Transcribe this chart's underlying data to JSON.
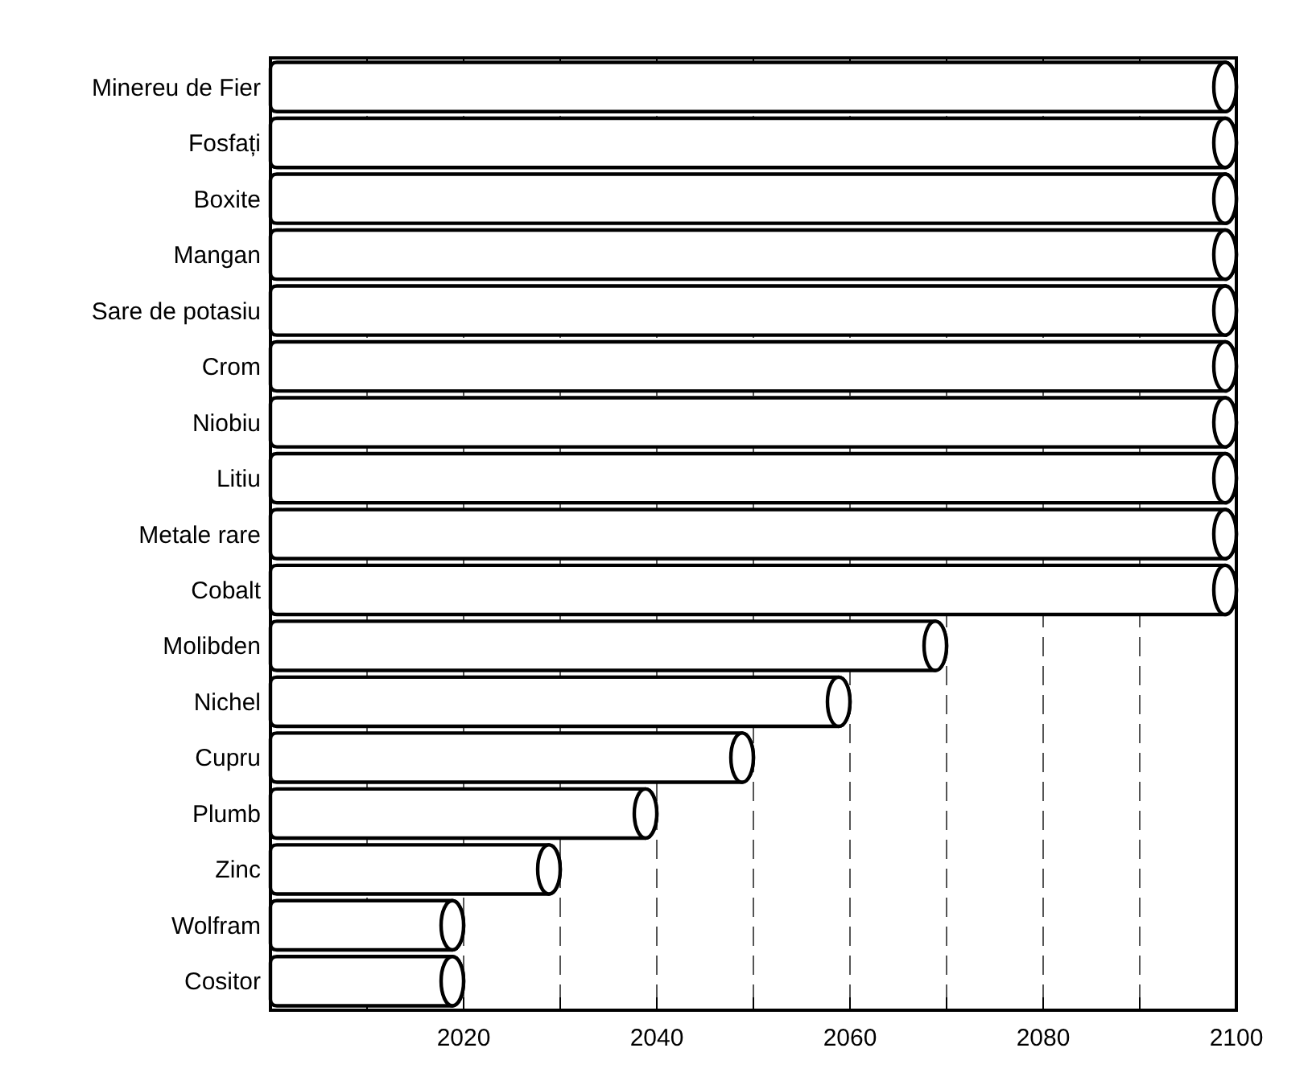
{
  "chart_data": {
    "type": "bar",
    "orientation": "horizontal",
    "categories": [
      "Minereu de Fier",
      "Fosfați",
      "Boxite",
      "Mangan",
      "Sare de potasiu",
      "Crom",
      "Niobiu",
      "Litiu",
      "Metale rare",
      "Cobalt",
      "Molibden",
      "Nichel",
      "Cupru",
      "Plumb",
      "Zinc",
      "Wolfram",
      "Cositor"
    ],
    "values": [
      100,
      100,
      100,
      100,
      100,
      100,
      100,
      100,
      100,
      100,
      70,
      60,
      50,
      40,
      30,
      20,
      20
    ],
    "base": [
      2000,
      2000,
      2000,
      2000,
      2000,
      2000,
      2000,
      2000,
      2000,
      2000,
      2000,
      2000,
      2000,
      2000,
      2000,
      2000,
      2000
    ],
    "color": "#ffffff",
    "xlim": [
      2000,
      2100
    ],
    "xticks": [
      {
        "value": 2010,
        "label": null
      },
      2020,
      {
        "value": 2030,
        "label": null
      },
      2040,
      {
        "value": 2050,
        "label": null
      },
      2060,
      {
        "value": 2070,
        "label": null
      },
      2080,
      {
        "value": 2090,
        "label": null
      },
      2100
    ],
    "grid": "x"
  }
}
